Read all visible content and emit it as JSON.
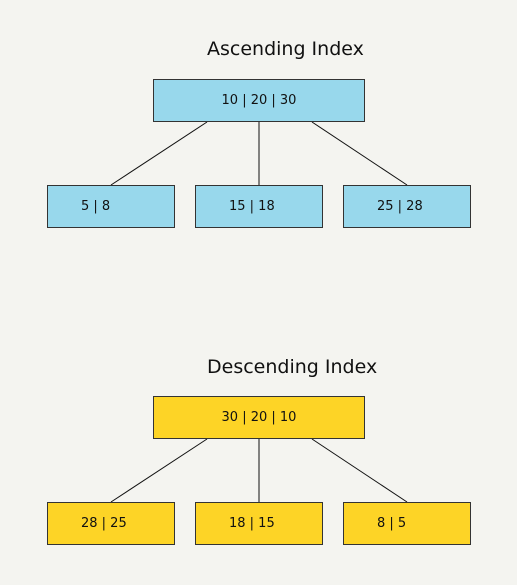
{
  "ascending": {
    "title": "Ascending Index",
    "root": "10 | 20 | 30",
    "leaves": [
      "5 | 8",
      "15 | 18",
      "25 | 28"
    ],
    "fill_color": "#98d8ec"
  },
  "descending": {
    "title": "Descending Index",
    "root": "30 | 20 | 10",
    "leaves": [
      "28 | 25",
      "18 | 15",
      "8 | 5"
    ],
    "fill_color": "#fdd426"
  }
}
